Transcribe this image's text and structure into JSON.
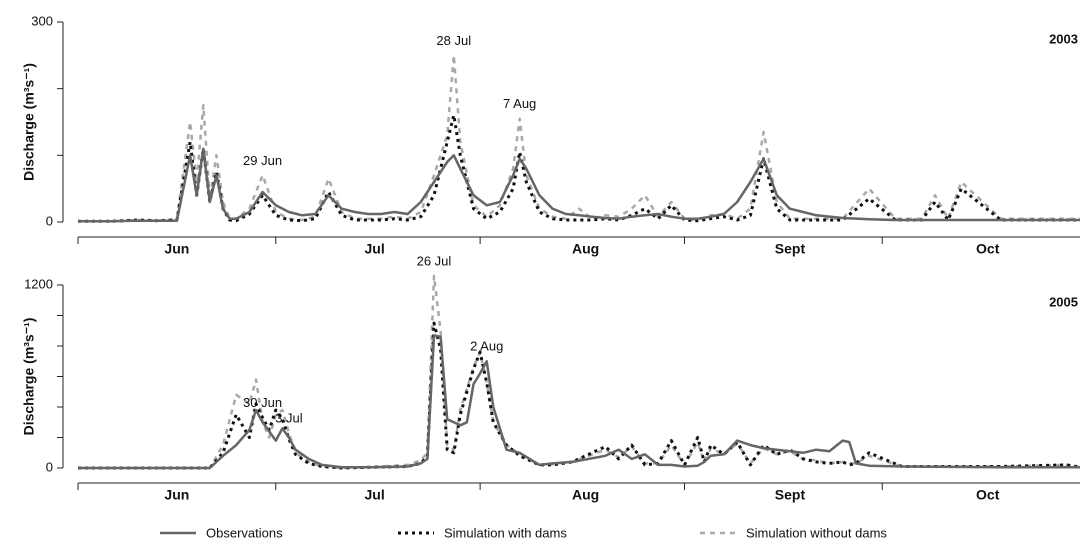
{
  "chart_data": [
    {
      "type": "line",
      "panel_label": "2003",
      "ylabel": "Discharge (m³s⁻¹)",
      "xlim": [
        0,
        152
      ],
      "xticks": [
        0,
        30,
        61,
        92,
        122
      ],
      "month_labels": [
        {
          "value": 15,
          "label": "Jun"
        },
        {
          "value": 45,
          "label": "Jul"
        },
        {
          "value": 77,
          "label": "Aug"
        },
        {
          "value": 108,
          "label": "Sept"
        },
        {
          "value": 138,
          "label": "Oct"
        }
      ],
      "ylim": [
        0,
        300
      ],
      "yticks": [
        0,
        300
      ],
      "yminor_ticks": [
        100,
        200
      ],
      "legend": "bottom",
      "x": [
        0,
        5,
        9,
        12,
        15,
        17,
        18,
        19,
        20,
        21,
        22,
        23,
        24,
        26,
        28,
        30,
        32,
        34,
        36,
        38,
        40,
        42,
        44,
        46,
        48,
        50,
        52,
        54,
        56,
        57,
        58,
        60,
        62,
        64,
        66,
        67,
        68,
        70,
        72,
        74,
        76,
        78,
        80,
        82,
        84,
        86,
        88,
        90,
        92,
        94,
        96,
        98,
        100,
        102,
        104,
        106,
        108,
        110,
        112,
        116,
        120,
        124,
        128,
        130,
        132,
        134,
        140,
        146,
        152
      ],
      "series": [
        {
          "name": "Observations",
          "color": "#666666",
          "line_style": "solid",
          "values": [
            1,
            1,
            2,
            2,
            2,
            100,
            40,
            110,
            30,
            70,
            20,
            5,
            5,
            15,
            45,
            25,
            15,
            10,
            12,
            40,
            20,
            15,
            12,
            12,
            15,
            12,
            30,
            60,
            90,
            100,
            80,
            40,
            25,
            30,
            70,
            95,
            80,
            40,
            20,
            12,
            10,
            8,
            6,
            5,
            8,
            10,
            12,
            8,
            5,
            5,
            8,
            12,
            30,
            60,
            95,
            40,
            20,
            15,
            10,
            6,
            4,
            3,
            3,
            3,
            3,
            3,
            3,
            3,
            3
          ]
        },
        {
          "name": "Simulation with dams",
          "color": "#111111",
          "line_style": "dotted",
          "values": [
            1,
            1,
            3,
            2,
            3,
            120,
            40,
            110,
            30,
            75,
            20,
            3,
            2,
            12,
            40,
            10,
            3,
            2,
            5,
            45,
            10,
            3,
            3,
            3,
            5,
            3,
            8,
            40,
            120,
            160,
            100,
            20,
            5,
            15,
            50,
            105,
            60,
            15,
            5,
            3,
            3,
            3,
            5,
            3,
            10,
            20,
            5,
            25,
            3,
            2,
            5,
            8,
            3,
            10,
            95,
            20,
            3,
            3,
            3,
            3,
            35,
            3,
            3,
            30,
            3,
            50,
            3,
            3,
            3
          ]
        },
        {
          "name": "Simulation without dams",
          "color": "#a8a8a8",
          "line_style": "dashed",
          "values": [
            1,
            1,
            3,
            2,
            4,
            150,
            60,
            175,
            35,
            100,
            30,
            5,
            5,
            20,
            70,
            15,
            5,
            3,
            8,
            65,
            15,
            5,
            5,
            5,
            8,
            5,
            15,
            70,
            130,
            250,
            120,
            25,
            8,
            25,
            80,
            155,
            70,
            20,
            8,
            5,
            20,
            5,
            10,
            8,
            20,
            40,
            8,
            30,
            5,
            3,
            10,
            12,
            5,
            20,
            135,
            30,
            5,
            5,
            5,
            5,
            50,
            5,
            5,
            40,
            5,
            60,
            5,
            5,
            5
          ]
        }
      ],
      "annotations": [
        {
          "label": "29 Jun",
          "x": 28
        },
        {
          "label": "28 Jul",
          "x": 57
        },
        {
          "label": "7 Aug",
          "x": 67
        }
      ]
    },
    {
      "type": "line",
      "panel_label": "2005",
      "ylabel": "Discharge (m³s⁻¹)",
      "xlim": [
        0,
        152
      ],
      "xticks": [
        0,
        30,
        61,
        92,
        122
      ],
      "month_labels": [
        {
          "value": 15,
          "label": "Jun"
        },
        {
          "value": 45,
          "label": "Jul"
        },
        {
          "value": 77,
          "label": "Aug"
        },
        {
          "value": 108,
          "label": "Sept"
        },
        {
          "value": 138,
          "label": "Oct"
        }
      ],
      "ylim": [
        0,
        1200
      ],
      "yticks": [
        0,
        1200
      ],
      "yminor_ticks": [
        200,
        400,
        600,
        800,
        1000
      ],
      "x": [
        0,
        10,
        20,
        22,
        24,
        26,
        27,
        28,
        29,
        30,
        31,
        32,
        33,
        35,
        37,
        40,
        45,
        50,
        52,
        53,
        54,
        55,
        56,
        57,
        58,
        59,
        60,
        61,
        62,
        63,
        65,
        67,
        70,
        72,
        75,
        80,
        82,
        84,
        86,
        88,
        90,
        92,
        94,
        95,
        96,
        98,
        100,
        102,
        104,
        106,
        108,
        110,
        112,
        114,
        116,
        117,
        118,
        120,
        125,
        130,
        140,
        150,
        152
      ],
      "series": [
        {
          "color": "#666666",
          "line_style": "solid",
          "values": [
            0,
            0,
            0,
            80,
            150,
            250,
            380,
            300,
            240,
            180,
            260,
            200,
            120,
            60,
            20,
            5,
            5,
            10,
            30,
            60,
            870,
            860,
            320,
            300,
            280,
            300,
            550,
            620,
            700,
            400,
            120,
            100,
            20,
            30,
            40,
            80,
            120,
            60,
            90,
            20,
            20,
            10,
            15,
            40,
            80,
            90,
            180,
            150,
            130,
            120,
            110,
            100,
            120,
            110,
            180,
            170,
            30,
            15,
            10,
            8,
            5,
            5,
            5
          ]
        },
        {
          "color": "#111111",
          "line_style": "dotted",
          "values": [
            0,
            0,
            0,
            100,
            350,
            200,
            420,
            330,
            250,
            380,
            320,
            190,
            90,
            30,
            10,
            0,
            5,
            10,
            30,
            80,
            950,
            780,
            120,
            100,
            350,
            500,
            650,
            760,
            560,
            300,
            150,
            80,
            20,
            20,
            40,
            140,
            60,
            150,
            20,
            30,
            180,
            20,
            200,
            40,
            150,
            90,
            170,
            20,
            150,
            90,
            120,
            60,
            40,
            30,
            40,
            20,
            30,
            100,
            10,
            10,
            10,
            20,
            5
          ]
        },
        {
          "color": "#a8a8a8",
          "line_style": "dashed",
          "values": [
            0,
            0,
            0,
            150,
            480,
            420,
            580,
            300,
            200,
            350,
            380,
            230,
            100,
            40,
            10,
            0,
            8,
            20,
            50,
            100,
            1260,
            900,
            150,
            120,
            380,
            520,
            660,
            760,
            560,
            300,
            150,
            90,
            20,
            25,
            40,
            120,
            70,
            140,
            30,
            30,
            150,
            20,
            170,
            40,
            130,
            90,
            160,
            30,
            130,
            90,
            110,
            60,
            50,
            30,
            40,
            30,
            30,
            80,
            10,
            10,
            10,
            20,
            5
          ]
        }
      ],
      "annotations": [
        {
          "label": "26 Jul",
          "x": 54
        },
        {
          "label": "2 Aug",
          "x": 62
        },
        {
          "label": "30 Jun",
          "x": 28
        },
        {
          "label": "3 Jul",
          "x": 32
        }
      ]
    }
  ]
}
